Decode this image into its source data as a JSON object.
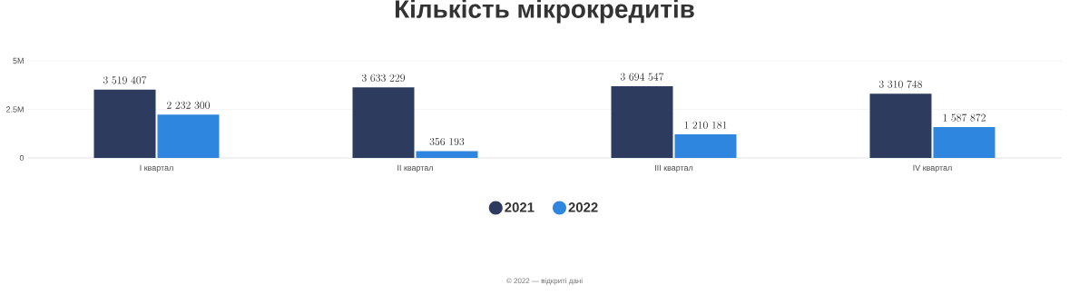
{
  "chart_data": {
    "type": "bar",
    "title": "Кількість мікрокредитів",
    "categories": [
      "I квартал",
      "II квартал",
      "III квартал",
      "IV квартал"
    ],
    "series": [
      {
        "name": "2021",
        "color": "#2d3b5e",
        "values": [
          3519407,
          3633229,
          3694547,
          3310748
        ]
      },
      {
        "name": "2022",
        "color": "#2e86de",
        "values": [
          2232300,
          356193,
          1210181,
          1587872
        ]
      }
    ],
    "ylim": [
      0,
      5000000
    ],
    "yticks": [
      0,
      {
        "value": 2500000,
        "label": "2.5M"
      },
      {
        "value": 5000000,
        "label": "5M"
      }
    ],
    "grid": "y",
    "legend": "bottom",
    "data_labels": true,
    "annotations": [
      "© 2022 — відкриті дані"
    ]
  }
}
